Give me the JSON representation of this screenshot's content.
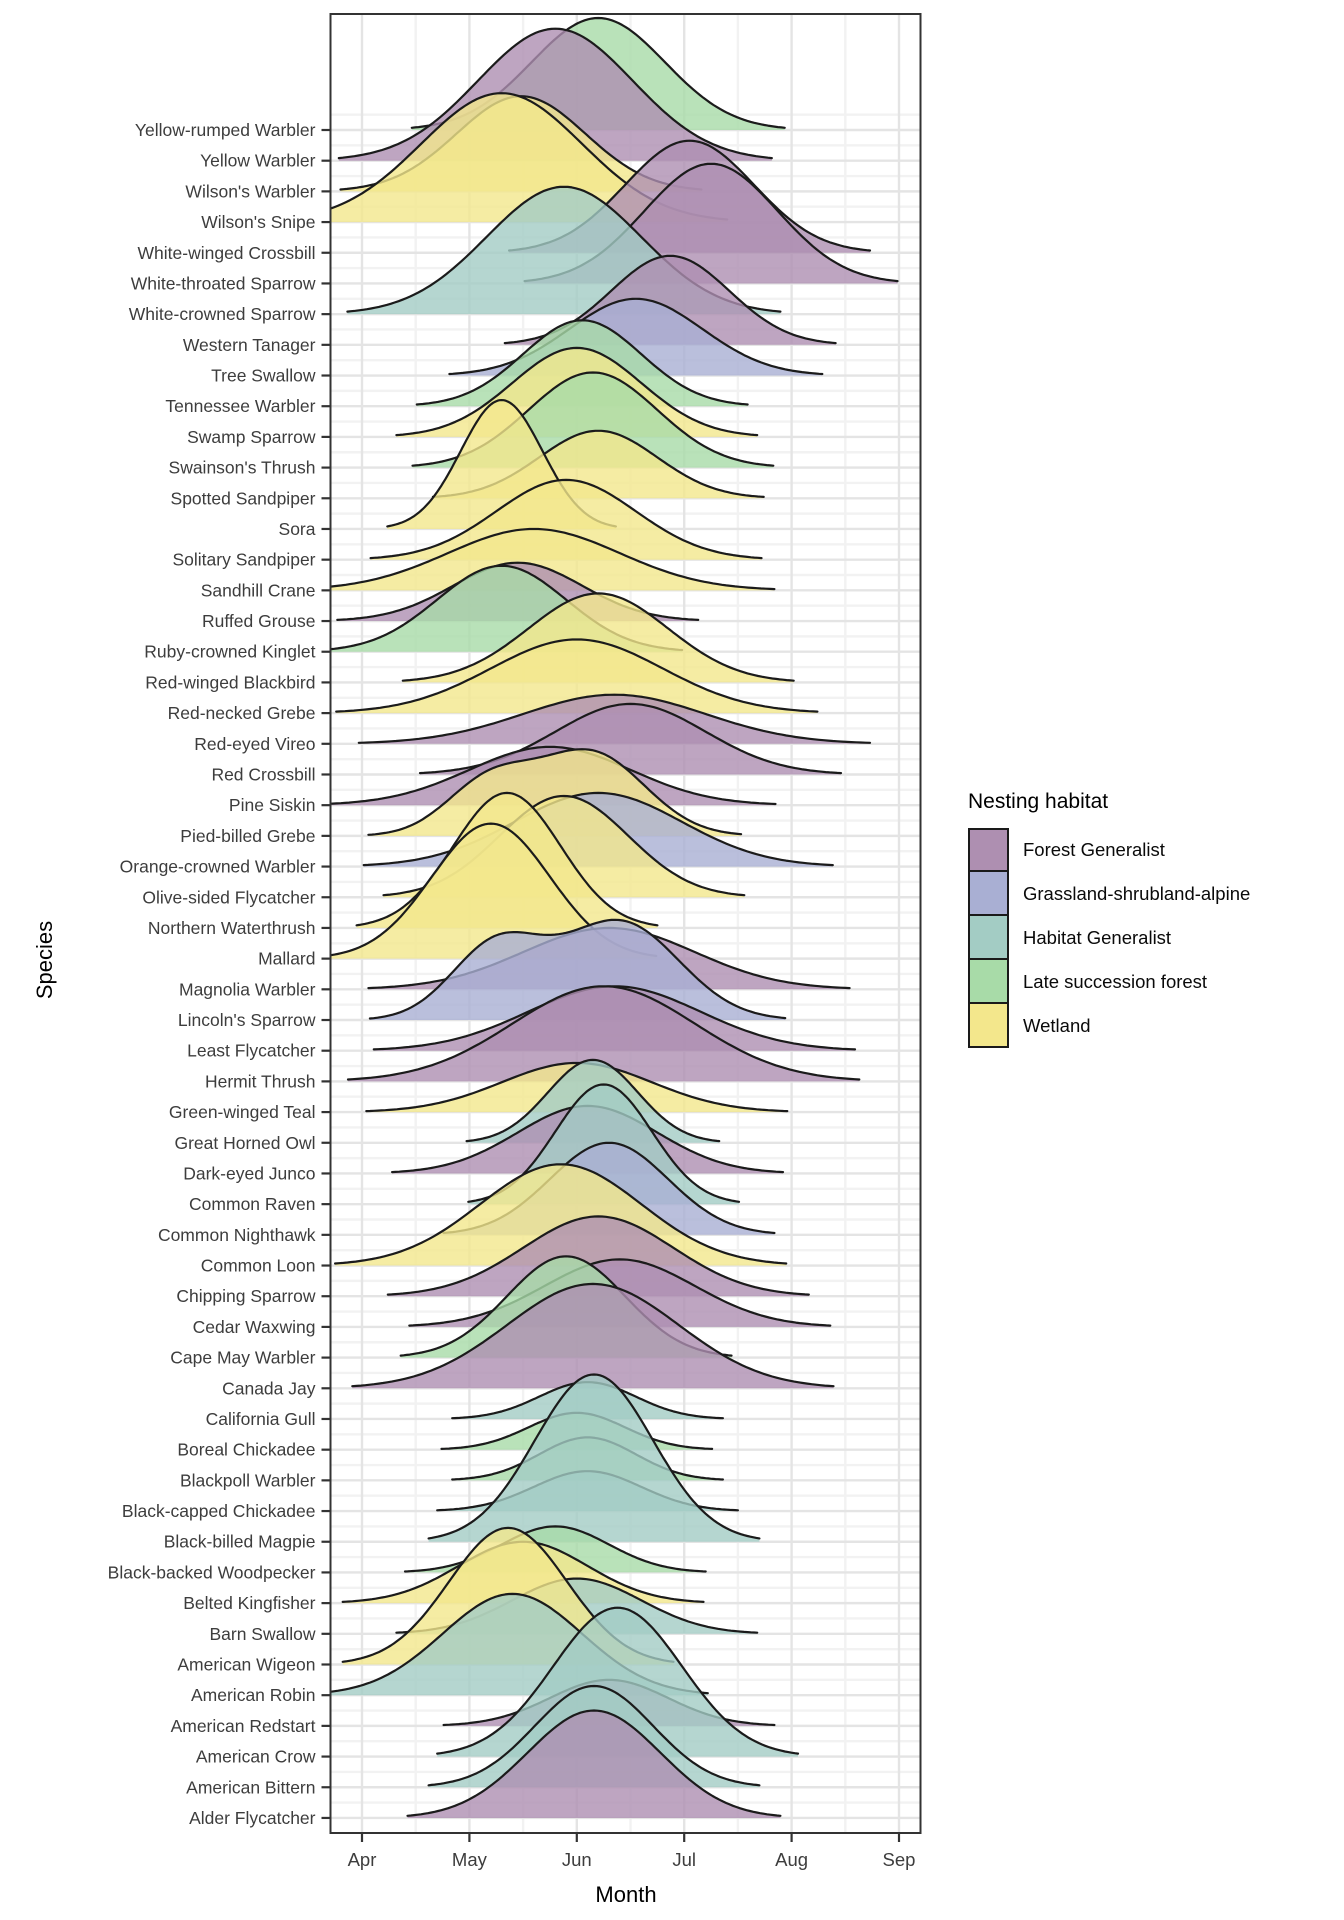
{
  "x_axis": {
    "label": "Month",
    "ticks": [
      "Apr",
      "May",
      "Jun",
      "Jul",
      "Aug",
      "Sep"
    ]
  },
  "y_axis": {
    "label": "Species"
  },
  "legend": {
    "title": "Nesting habitat",
    "items": [
      {
        "label": "Forest Generalist",
        "color": "#ae8fb1"
      },
      {
        "label": "Grassland-shrubland-alpine",
        "color": "#a9afd3"
      },
      {
        "label": "Habitat Generalist",
        "color": "#a3ccc4"
      },
      {
        "label": "Late succession forest",
        "color": "#a8dba8"
      },
      {
        "label": "Wetland",
        "color": "#f3e78c"
      }
    ]
  },
  "chart_data": {
    "type": "ridgeline",
    "title": "",
    "xlabel": "Month",
    "ylabel": "Species",
    "x_unit": "month number (Apr=4, May=5, Jun=6, Jul=7, Aug=8, Sep=9)",
    "x_range": [
      3.7,
      9.2
    ],
    "grid": "major and minor, light gray on white",
    "legend_position": "right",
    "ridge_outline_color": "#1b1b1b",
    "axis_text_color": "#3d3d3d",
    "species": [
      {
        "name": "Yellow-rumped Warbler",
        "habitat": "Late succession forest",
        "modes": [
          {
            "center": 6.2,
            "sd": 0.62,
            "height": 3.65
          }
        ]
      },
      {
        "name": "Yellow Warbler",
        "habitat": "Forest Generalist",
        "modes": [
          {
            "center": 5.8,
            "sd": 0.72,
            "height": 4.3
          }
        ]
      },
      {
        "name": "Wilson's Warbler",
        "habitat": "Wetland",
        "modes": [
          {
            "center": 5.48,
            "sd": 0.6,
            "height": 3.1
          }
        ]
      },
      {
        "name": "Wilson's Snipe",
        "habitat": "Wetland",
        "modes": [
          {
            "center": 5.3,
            "sd": 0.75,
            "height": 4.2
          }
        ]
      },
      {
        "name": "White-winged Crossbill",
        "habitat": "Forest Generalist",
        "modes": [
          {
            "center": 7.05,
            "sd": 0.6,
            "height": 3.65
          }
        ]
      },
      {
        "name": "White-throated Sparrow",
        "habitat": "Forest Generalist",
        "modes": [
          {
            "center": 7.25,
            "sd": 0.62,
            "height": 3.9
          }
        ]
      },
      {
        "name": "White-crowned Sparrow",
        "habitat": "Habitat Generalist",
        "modes": [
          {
            "center": 5.88,
            "sd": 0.72,
            "height": 4.15
          }
        ]
      },
      {
        "name": "Western Tanager",
        "habitat": "Forest Generalist",
        "modes": [
          {
            "center": 6.87,
            "sd": 0.55,
            "height": 2.9
          }
        ]
      },
      {
        "name": "Tree Swallow",
        "habitat": "Grassland-shrubland-alpine",
        "modes": [
          {
            "center": 6.55,
            "sd": 0.62,
            "height": 2.5
          }
        ]
      },
      {
        "name": "Tennessee Warbler",
        "habitat": "Late succession forest",
        "modes": [
          {
            "center": 6.05,
            "sd": 0.55,
            "height": 2.8
          }
        ]
      },
      {
        "name": "Swamp Sparrow",
        "habitat": "Wetland",
        "modes": [
          {
            "center": 6.0,
            "sd": 0.6,
            "height": 2.9
          }
        ]
      },
      {
        "name": "Swainson's Thrush",
        "habitat": "Late succession forest",
        "modes": [
          {
            "center": 6.15,
            "sd": 0.6,
            "height": 3.1
          }
        ]
      },
      {
        "name": "Spotted Sandpiper",
        "habitat": "Wetland",
        "modes": [
          {
            "center": 6.2,
            "sd": 0.55,
            "height": 2.2
          }
        ]
      },
      {
        "name": "Sora",
        "habitat": "Wetland",
        "modes": [
          {
            "center": 5.3,
            "sd": 0.38,
            "height": 4.2
          }
        ]
      },
      {
        "name": "Solitary Sandpiper",
        "habitat": "Wetland",
        "modes": [
          {
            "center": 5.9,
            "sd": 0.65,
            "height": 2.6
          }
        ]
      },
      {
        "name": "Sandhill Crane",
        "habitat": "Wetland",
        "modes": [
          {
            "center": 5.6,
            "sd": 0.8,
            "height": 2.0
          }
        ]
      },
      {
        "name": "Ruffed Grouse",
        "habitat": "Forest Generalist",
        "modes": [
          {
            "center": 5.45,
            "sd": 0.6,
            "height": 1.9
          }
        ]
      },
      {
        "name": "Ruby-crowned Kinglet",
        "habitat": "Late succession forest",
        "modes": [
          {
            "center": 5.3,
            "sd": 0.6,
            "height": 2.8
          }
        ]
      },
      {
        "name": "Red-winged Blackbird",
        "habitat": "Wetland",
        "modes": [
          {
            "center": 6.2,
            "sd": 0.65,
            "height": 2.9
          }
        ]
      },
      {
        "name": "Red-necked Grebe",
        "habitat": "Wetland",
        "modes": [
          {
            "center": 6.0,
            "sd": 0.8,
            "height": 2.4
          }
        ]
      },
      {
        "name": "Red-eyed Vireo",
        "habitat": "Forest Generalist",
        "modes": [
          {
            "center": 6.35,
            "sd": 0.85,
            "height": 1.6
          }
        ]
      },
      {
        "name": "Red Crossbill",
        "habitat": "Forest Generalist",
        "modes": [
          {
            "center": 6.5,
            "sd": 0.7,
            "height": 2.3
          }
        ]
      },
      {
        "name": "Pine Siskin",
        "habitat": "Forest Generalist",
        "modes": [
          {
            "center": 5.75,
            "sd": 0.75,
            "height": 1.9
          }
        ]
      },
      {
        "name": "Pied-billed Grebe",
        "habitat": "Wetland",
        "modes": [
          {
            "center": 5.18,
            "sd": 0.4,
            "height": 1.7
          },
          {
            "center": 6.13,
            "sd": 0.5,
            "height": 2.7
          }
        ]
      },
      {
        "name": "Orange-crowned Warbler",
        "habitat": "Grassland-shrubland-alpine",
        "modes": [
          {
            "center": 6.2,
            "sd": 0.78,
            "height": 2.4
          }
        ]
      },
      {
        "name": "Olive-sided Flycatcher",
        "habitat": "Wetland",
        "modes": [
          {
            "center": 5.88,
            "sd": 0.6,
            "height": 3.3
          }
        ]
      },
      {
        "name": "Northern Waterthrush",
        "habitat": "Wetland",
        "modes": [
          {
            "center": 5.35,
            "sd": 0.5,
            "height": 4.4
          }
        ]
      },
      {
        "name": "Mallard",
        "habitat": "Wetland",
        "modes": [
          {
            "center": 5.2,
            "sd": 0.55,
            "height": 4.4
          }
        ]
      },
      {
        "name": "Magnolia Warbler",
        "habitat": "Forest Generalist",
        "modes": [
          {
            "center": 6.3,
            "sd": 0.8,
            "height": 2.0
          }
        ]
      },
      {
        "name": "Lincoln's Sparrow",
        "habitat": "Grassland-shrubland-alpine",
        "modes": [
          {
            "center": 5.25,
            "sd": 0.42,
            "height": 2.4
          },
          {
            "center": 6.4,
            "sd": 0.55,
            "height": 3.2
          }
        ]
      },
      {
        "name": "Least Flycatcher",
        "habitat": "Forest Generalist",
        "modes": [
          {
            "center": 6.35,
            "sd": 0.8,
            "height": 2.1
          }
        ]
      },
      {
        "name": "Hermit Thrush",
        "habitat": "Forest Generalist",
        "modes": [
          {
            "center": 6.25,
            "sd": 0.85,
            "height": 3.1
          }
        ]
      },
      {
        "name": "Green-winged Teal",
        "habitat": "Wetland",
        "modes": [
          {
            "center": 6.0,
            "sd": 0.7,
            "height": 1.6
          }
        ]
      },
      {
        "name": "Great Horned Owl",
        "habitat": "Habitat Generalist",
        "modes": [
          {
            "center": 6.15,
            "sd": 0.42,
            "height": 2.7
          }
        ]
      },
      {
        "name": "Dark-eyed Junco",
        "habitat": "Forest Generalist",
        "modes": [
          {
            "center": 6.1,
            "sd": 0.65,
            "height": 2.2
          }
        ]
      },
      {
        "name": "Common Raven",
        "habitat": "Habitat Generalist",
        "modes": [
          {
            "center": 6.25,
            "sd": 0.45,
            "height": 3.9
          }
        ]
      },
      {
        "name": "Common Nighthawk",
        "habitat": "Grassland-shrubland-alpine",
        "modes": [
          {
            "center": 6.3,
            "sd": 0.55,
            "height": 3.0
          }
        ]
      },
      {
        "name": "Common Loon",
        "habitat": "Wetland",
        "modes": [
          {
            "center": 5.85,
            "sd": 0.75,
            "height": 3.3
          }
        ]
      },
      {
        "name": "Chipping Sparrow",
        "habitat": "Forest Generalist",
        "modes": [
          {
            "center": 6.2,
            "sd": 0.7,
            "height": 2.6
          }
        ]
      },
      {
        "name": "Cedar Waxwing",
        "habitat": "Forest Generalist",
        "modes": [
          {
            "center": 6.4,
            "sd": 0.7,
            "height": 2.2
          }
        ]
      },
      {
        "name": "Cape May Warbler",
        "habitat": "Late succession forest",
        "modes": [
          {
            "center": 5.9,
            "sd": 0.55,
            "height": 3.3
          }
        ]
      },
      {
        "name": "Canada Jay",
        "habitat": "Forest Generalist",
        "modes": [
          {
            "center": 6.15,
            "sd": 0.8,
            "height": 3.4
          }
        ]
      },
      {
        "name": "California Gull",
        "habitat": "Habitat Generalist",
        "modes": [
          {
            "center": 6.1,
            "sd": 0.45,
            "height": 1.2
          }
        ]
      },
      {
        "name": "Boreal Chickadee",
        "habitat": "Late succession forest",
        "modes": [
          {
            "center": 6.0,
            "sd": 0.45,
            "height": 1.2
          }
        ]
      },
      {
        "name": "Blackpoll Warbler",
        "habitat": "Late succession forest",
        "modes": [
          {
            "center": 6.1,
            "sd": 0.45,
            "height": 1.4
          }
        ]
      },
      {
        "name": "Black-capped Chickadee",
        "habitat": "Habitat Generalist",
        "modes": [
          {
            "center": 6.1,
            "sd": 0.5,
            "height": 1.3
          }
        ]
      },
      {
        "name": "Black-billed Magpie",
        "habitat": "Habitat Generalist",
        "modes": [
          {
            "center": 6.16,
            "sd": 0.55,
            "height": 5.45
          }
        ]
      },
      {
        "name": "Black-backed Woodpecker",
        "habitat": "Late succession forest",
        "modes": [
          {
            "center": 5.8,
            "sd": 0.5,
            "height": 1.5
          }
        ]
      },
      {
        "name": "Belted Kingfisher",
        "habitat": "Wetland",
        "modes": [
          {
            "center": 5.5,
            "sd": 0.6,
            "height": 2.0
          }
        ]
      },
      {
        "name": "Barn Swallow",
        "habitat": "Habitat Generalist",
        "modes": [
          {
            "center": 6.0,
            "sd": 0.6,
            "height": 1.8
          }
        ]
      },
      {
        "name": "American Wigeon",
        "habitat": "Wetland",
        "modes": [
          {
            "center": 5.36,
            "sd": 0.55,
            "height": 4.45
          }
        ]
      },
      {
        "name": "American Robin",
        "habitat": "Habitat Generalist",
        "modes": [
          {
            "center": 5.4,
            "sd": 0.65,
            "height": 3.3
          }
        ]
      },
      {
        "name": "American Redstart",
        "habitat": "Forest Generalist",
        "modes": [
          {
            "center": 6.3,
            "sd": 0.55,
            "height": 1.5
          }
        ]
      },
      {
        "name": "American Crow",
        "habitat": "Habitat Generalist",
        "modes": [
          {
            "center": 6.38,
            "sd": 0.6,
            "height": 4.85
          }
        ]
      },
      {
        "name": "American Bittern",
        "habitat": "Habitat Generalist",
        "modes": [
          {
            "center": 6.16,
            "sd": 0.55,
            "height": 3.3
          }
        ]
      },
      {
        "name": "Alder Flycatcher",
        "habitat": "Forest Generalist",
        "modes": [
          {
            "center": 6.16,
            "sd": 0.62,
            "height": 3.5
          }
        ]
      }
    ]
  }
}
